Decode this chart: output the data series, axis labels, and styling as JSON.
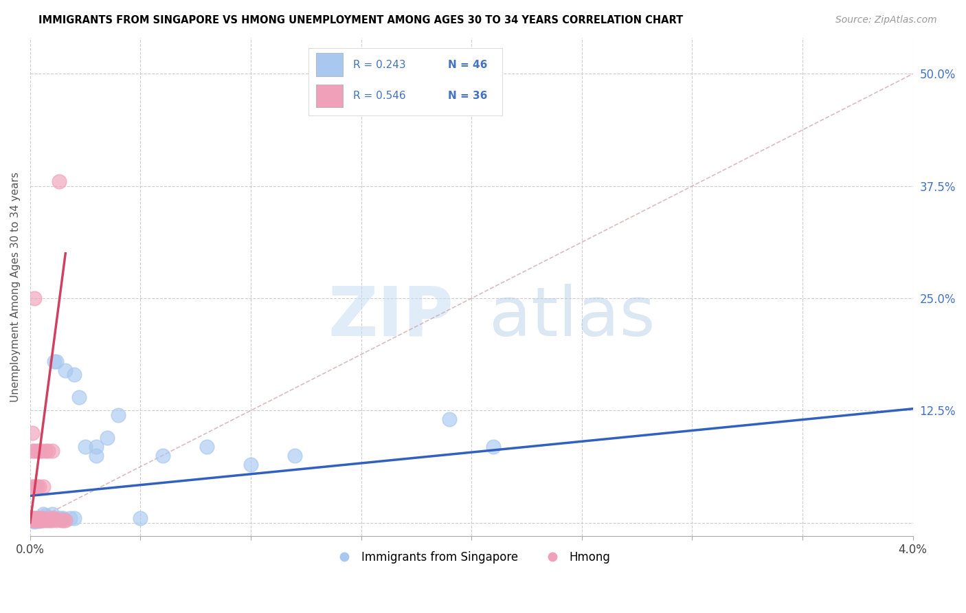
{
  "title": "IMMIGRANTS FROM SINGAPORE VS HMONG UNEMPLOYMENT AMONG AGES 30 TO 34 YEARS CORRELATION CHART",
  "source": "Source: ZipAtlas.com",
  "ylabel": "Unemployment Among Ages 30 to 34 years",
  "xlim": [
    0.0,
    0.04
  ],
  "ylim": [
    -0.015,
    0.54
  ],
  "xtick_positions": [
    0.0,
    0.005,
    0.01,
    0.015,
    0.02,
    0.025,
    0.03,
    0.035,
    0.04
  ],
  "xtick_labels": [
    "0.0%",
    "",
    "",
    "",
    "",
    "",
    "",
    "",
    "4.0%"
  ],
  "yticks_right": [
    0.0,
    0.125,
    0.25,
    0.375,
    0.5
  ],
  "yticklabels_right": [
    "",
    "12.5%",
    "25.0%",
    "37.5%",
    "50.0%"
  ],
  "watermark_zip": "ZIP",
  "watermark_atlas": "atlas",
  "blue_color": "#a8c8f0",
  "pink_color": "#f0a0b8",
  "blue_line_color": "#3060c0",
  "pink_line_color": "#d04060",
  "diag_color": "#d0aab0",
  "legend_r1": "R = 0.243",
  "legend_n1": "N = 46",
  "legend_r2": "R = 0.546",
  "legend_n2": "N = 36",
  "singapore_x": [
    0.0001,
    0.0001,
    0.0001,
    0.0002,
    0.0002,
    0.0002,
    0.0003,
    0.0003,
    0.0003,
    0.0003,
    0.0004,
    0.0004,
    0.0004,
    0.0005,
    0.0005,
    0.0006,
    0.0006,
    0.0006,
    0.0007,
    0.0007,
    0.0008,
    0.0009,
    0.001,
    0.001,
    0.0011,
    0.0012,
    0.0013,
    0.0014,
    0.0015,
    0.0016,
    0.0018,
    0.002,
    0.002,
    0.0022,
    0.0025,
    0.003,
    0.003,
    0.0035,
    0.004,
    0.005,
    0.006,
    0.008,
    0.01,
    0.012,
    0.019,
    0.021
  ],
  "singapore_y": [
    0.005,
    0.003,
    0.002,
    0.005,
    0.003,
    0.001,
    0.005,
    0.003,
    0.005,
    0.002,
    0.005,
    0.003,
    0.002,
    0.005,
    0.003,
    0.01,
    0.005,
    0.003,
    0.005,
    0.008,
    0.005,
    0.003,
    0.01,
    0.005,
    0.18,
    0.18,
    0.005,
    0.005,
    0.005,
    0.17,
    0.005,
    0.165,
    0.005,
    0.14,
    0.085,
    0.085,
    0.075,
    0.095,
    0.12,
    0.005,
    0.075,
    0.085,
    0.065,
    0.075,
    0.115,
    0.085
  ],
  "hmong_x": [
    0.0001,
    0.0001,
    0.0001,
    0.0001,
    0.0001,
    0.0002,
    0.0002,
    0.0002,
    0.0002,
    0.0002,
    0.0003,
    0.0003,
    0.0003,
    0.0003,
    0.0004,
    0.0004,
    0.0004,
    0.0004,
    0.0005,
    0.0005,
    0.0005,
    0.0006,
    0.0006,
    0.0007,
    0.0007,
    0.0008,
    0.0008,
    0.0009,
    0.001,
    0.001,
    0.0011,
    0.0012,
    0.0013,
    0.0014,
    0.0015,
    0.0016
  ],
  "hmong_y": [
    0.005,
    0.003,
    0.04,
    0.08,
    0.1,
    0.005,
    0.003,
    0.04,
    0.08,
    0.25,
    0.005,
    0.003,
    0.04,
    0.08,
    0.005,
    0.003,
    0.04,
    0.08,
    0.005,
    0.003,
    0.08,
    0.005,
    0.04,
    0.003,
    0.08,
    0.003,
    0.08,
    0.005,
    0.003,
    0.08,
    0.005,
    0.003,
    0.38,
    0.003,
    0.003,
    0.003
  ],
  "blue_line_x0": 0.0,
  "blue_line_y0": 0.03,
  "blue_line_x1": 0.04,
  "blue_line_y1": 0.127,
  "pink_line_x0": 0.0,
  "pink_line_y0": 0.0,
  "pink_line_x1": 0.0016,
  "pink_line_y1": 0.3
}
